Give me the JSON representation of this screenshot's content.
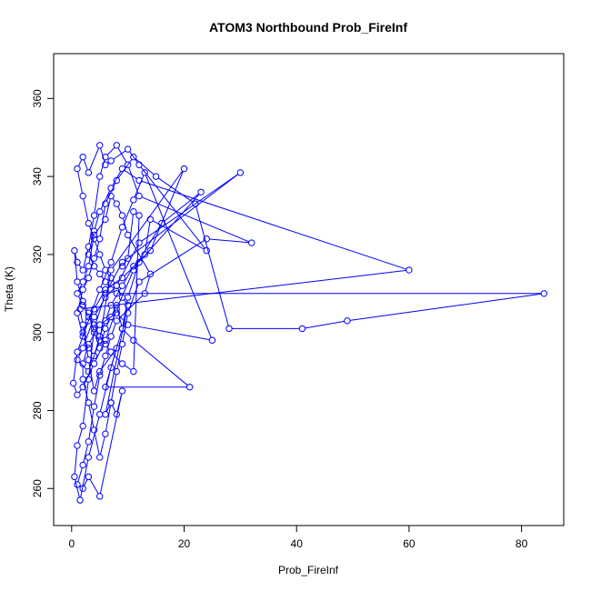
{
  "chart_data": {
    "type": "line",
    "title": "ATOM3 Northbound Prob_FireInf",
    "xlabel": "Prob_FireInf",
    "ylabel": "Theta (K)",
    "xlim": [
      -3.2,
      87.5
    ],
    "ylim": [
      250.5,
      371.5
    ],
    "x_ticks": [
      0,
      20,
      40,
      60,
      80
    ],
    "y_ticks": [
      260,
      280,
      300,
      320,
      340,
      360
    ],
    "grid": false,
    "color": "#0000ff",
    "marker": "open-circle",
    "series": [
      {
        "points": [
          [
            2,
            300
          ],
          [
            4,
            306
          ],
          [
            6,
            311
          ],
          [
            9,
            314
          ],
          [
            14,
            321
          ],
          [
            20,
            342
          ],
          [
            7,
            316
          ],
          [
            5,
            298
          ],
          [
            3,
            290
          ],
          [
            1,
            293
          ],
          [
            2,
            296
          ],
          [
            4,
            304
          ],
          [
            6,
            309
          ],
          [
            8,
            312
          ],
          [
            12,
            323
          ],
          [
            30,
            341
          ],
          [
            9,
            318
          ],
          [
            6,
            310
          ],
          [
            4,
            301
          ],
          [
            3,
            288
          ],
          [
            2,
            276
          ],
          [
            1,
            271
          ],
          [
            0.5,
            263
          ],
          [
            1.5,
            257
          ],
          [
            3,
            268
          ],
          [
            5,
            279
          ],
          [
            7,
            291
          ],
          [
            9,
            301
          ],
          [
            10,
            309
          ],
          [
            12,
            318
          ],
          [
            23,
            336
          ],
          [
            16,
            328
          ],
          [
            11,
            316
          ],
          [
            8,
            306
          ],
          [
            6,
            298
          ],
          [
            4,
            292
          ],
          [
            2,
            286
          ],
          [
            1,
            284
          ],
          [
            0.3,
            287
          ],
          [
            1,
            295
          ],
          [
            3,
            303
          ],
          [
            5,
            311
          ],
          [
            7,
            318
          ],
          [
            9,
            327
          ],
          [
            11,
            334
          ],
          [
            13,
            341
          ],
          [
            25,
            298
          ],
          [
            10,
            302
          ],
          [
            8,
            305
          ],
          [
            5,
            302
          ],
          [
            3,
            297
          ],
          [
            2,
            292
          ],
          [
            2,
            288
          ],
          [
            3,
            282
          ],
          [
            4,
            275
          ],
          [
            5,
            268
          ],
          [
            6,
            274
          ],
          [
            7,
            282
          ],
          [
            8,
            290
          ],
          [
            9,
            297
          ],
          [
            10,
            305
          ],
          [
            12,
            313
          ],
          [
            24,
            324
          ],
          [
            32,
            323
          ],
          [
            12,
            335
          ],
          [
            10,
            343
          ],
          [
            8,
            348
          ],
          [
            6,
            345
          ],
          [
            5,
            340
          ],
          [
            4,
            330
          ],
          [
            3,
            322
          ],
          [
            2,
            316
          ],
          [
            1,
            318
          ],
          [
            0.5,
            321
          ],
          [
            1,
            313
          ],
          [
            2,
            308
          ],
          [
            3,
            305
          ],
          [
            4,
            300
          ],
          [
            5,
            296
          ],
          [
            6,
            301
          ],
          [
            7,
            304
          ],
          [
            8,
            307
          ],
          [
            9,
            301
          ],
          [
            11,
            298
          ],
          [
            21,
            286
          ],
          [
            6,
            286
          ],
          [
            8,
            296
          ],
          [
            5,
            290
          ],
          [
            4,
            285
          ],
          [
            3,
            293
          ],
          [
            2,
            302
          ],
          [
            1.5,
            306
          ],
          [
            60,
            316
          ],
          [
            12,
            339
          ],
          [
            9,
            342
          ],
          [
            7,
            337
          ],
          [
            5,
            331
          ],
          [
            4,
            326
          ],
          [
            3,
            320
          ],
          [
            4,
            317
          ],
          [
            5,
            315
          ],
          [
            6,
            313
          ],
          [
            7,
            311
          ],
          [
            8,
            310
          ],
          [
            84,
            310
          ],
          [
            49,
            303
          ],
          [
            41,
            301
          ],
          [
            28,
            301
          ],
          [
            22,
            333
          ],
          [
            15,
            340
          ],
          [
            11,
            345
          ],
          [
            8,
            339
          ],
          [
            6,
            333
          ],
          [
            5,
            324
          ],
          [
            4,
            319
          ],
          [
            3,
            314
          ],
          [
            2,
            311
          ],
          [
            1,
            305
          ],
          [
            2,
            299
          ],
          [
            3,
            296
          ],
          [
            4,
            294
          ],
          [
            5,
            299
          ],
          [
            6,
            303
          ],
          [
            7,
            307
          ],
          [
            9,
            312
          ],
          [
            11,
            317
          ],
          [
            13,
            320
          ],
          [
            14,
            329
          ],
          [
            24,
            321
          ],
          [
            12,
            343
          ],
          [
            10,
            347
          ],
          [
            7,
            344
          ],
          [
            6,
            343
          ],
          [
            5,
            348
          ],
          [
            3,
            341
          ],
          [
            2,
            345
          ],
          [
            1,
            342
          ],
          [
            2,
            335
          ],
          [
            3,
            328
          ],
          [
            4,
            324
          ],
          [
            5,
            320
          ],
          [
            6,
            316
          ],
          [
            7,
            314
          ],
          [
            8,
            312
          ],
          [
            9,
            309
          ],
          [
            10,
            307
          ],
          [
            6,
            279
          ],
          [
            7,
            282
          ],
          [
            8,
            279
          ],
          [
            9,
            285
          ],
          [
            5,
            258
          ],
          [
            3,
            263
          ],
          [
            2,
            260
          ],
          [
            1,
            261
          ],
          [
            2,
            266
          ],
          [
            3,
            272
          ],
          [
            4,
            281
          ],
          [
            5,
            289
          ],
          [
            6,
            294
          ],
          [
            7,
            299
          ],
          [
            8,
            303
          ],
          [
            13,
            310
          ],
          [
            14,
            315
          ],
          [
            10,
            325
          ],
          [
            9,
            330
          ],
          [
            8,
            333
          ],
          [
            7,
            335
          ],
          [
            6,
            329
          ],
          [
            4,
            325
          ],
          [
            3,
            317
          ],
          [
            2,
            313
          ],
          [
            1,
            310
          ],
          [
            2,
            307
          ],
          [
            3,
            304
          ],
          [
            4,
            302
          ],
          [
            5,
            299
          ],
          [
            6,
            297
          ],
          [
            7,
            295
          ],
          [
            9,
            292
          ],
          [
            11,
            290
          ],
          [
            12,
            330
          ],
          [
            11,
            331
          ],
          [
            10,
            319
          ],
          [
            9,
            317
          ]
        ]
      }
    ]
  }
}
